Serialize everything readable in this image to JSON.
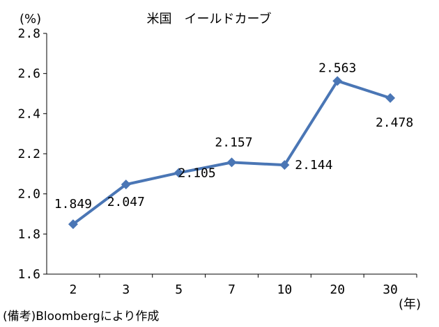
{
  "chart_data": {
    "type": "line",
    "title": "米国　イールドカーブ",
    "ylabel": "(%)",
    "xlabel": "(年)",
    "source": "(備考)Bloombergにより作成",
    "categories": [
      "2",
      "3",
      "5",
      "7",
      "10",
      "20",
      "30"
    ],
    "series": [
      {
        "values": [
          1.849,
          2.047,
          2.105,
          2.157,
          2.144,
          2.563,
          2.478
        ]
      }
    ],
    "data_labels": [
      "1.849",
      "2.047",
      "2.105",
      "2.157",
      "2.144",
      "2.563",
      "2.478"
    ],
    "ylim": [
      1.6,
      2.8
    ],
    "yticks": [
      "1.6",
      "1.8",
      "2.0",
      "2.2",
      "2.4",
      "2.6",
      "2.8"
    ],
    "grid": false,
    "color": "#4a76b5"
  }
}
